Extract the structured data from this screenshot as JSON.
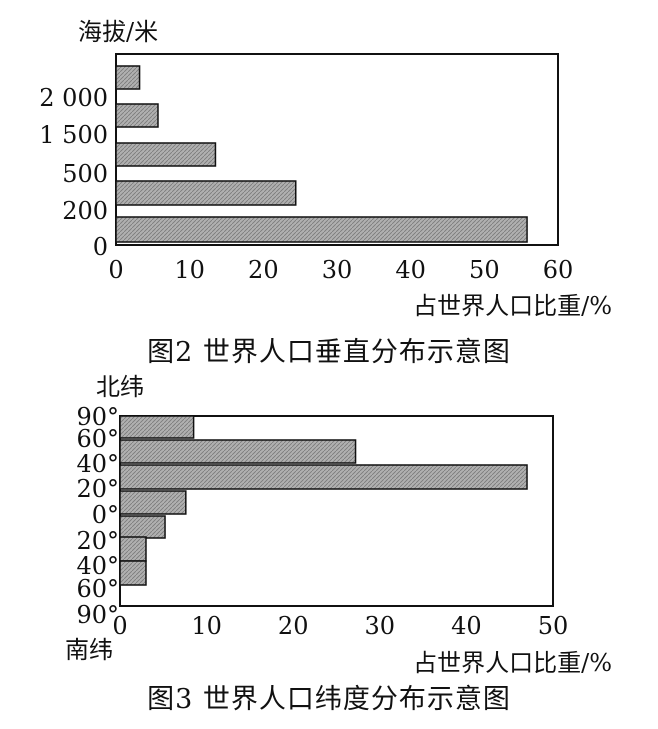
{
  "chart_data": [
    {
      "type": "bar",
      "orientation": "horizontal",
      "caption": "图2 世界人口垂直分布示意图",
      "ylabel": "海拔/米",
      "xlabel": "占世界人口比重/%",
      "categories": [
        "0",
        "200",
        "500",
        "1 500",
        "2 000"
      ],
      "y_tick_labels": [
        "2 000",
        "1 500",
        "500",
        "200",
        "0"
      ],
      "values": [
        55.8,
        24.4,
        13.5,
        5.7,
        3.2
      ],
      "xlim": [
        0,
        60
      ],
      "xticks": [
        "0",
        "10",
        "20",
        "30",
        "40",
        "50",
        "60"
      ],
      "fill": "#b0b0b0",
      "grid": false
    },
    {
      "type": "bar",
      "orientation": "horizontal",
      "caption": "图3 世界人口纬度分布示意图",
      "ylabel_top": "北纬",
      "ylabel_bottom": "南纬",
      "xlabel": "占世界人口比重/%",
      "categories": [
        "90°-60° N",
        "60°-40° N",
        "40°-20° N",
        "20°-0° N",
        "0°-20° S",
        "20°-40° S",
        "40°-60° S",
        "60°-90° S"
      ],
      "y_tick_labels": [
        "90°",
        "60°",
        "40°",
        "20°",
        "0°",
        "20°",
        "40°",
        "60°",
        "90°"
      ],
      "values": [
        8.5,
        27.2,
        47.0,
        7.6,
        5.2,
        3.0,
        3.0,
        0
      ],
      "xlim": [
        0,
        50
      ],
      "xticks": [
        "0",
        "10",
        "20",
        "30",
        "40",
        "50"
      ],
      "fill": "#b0b0b0",
      "grid": false
    }
  ]
}
